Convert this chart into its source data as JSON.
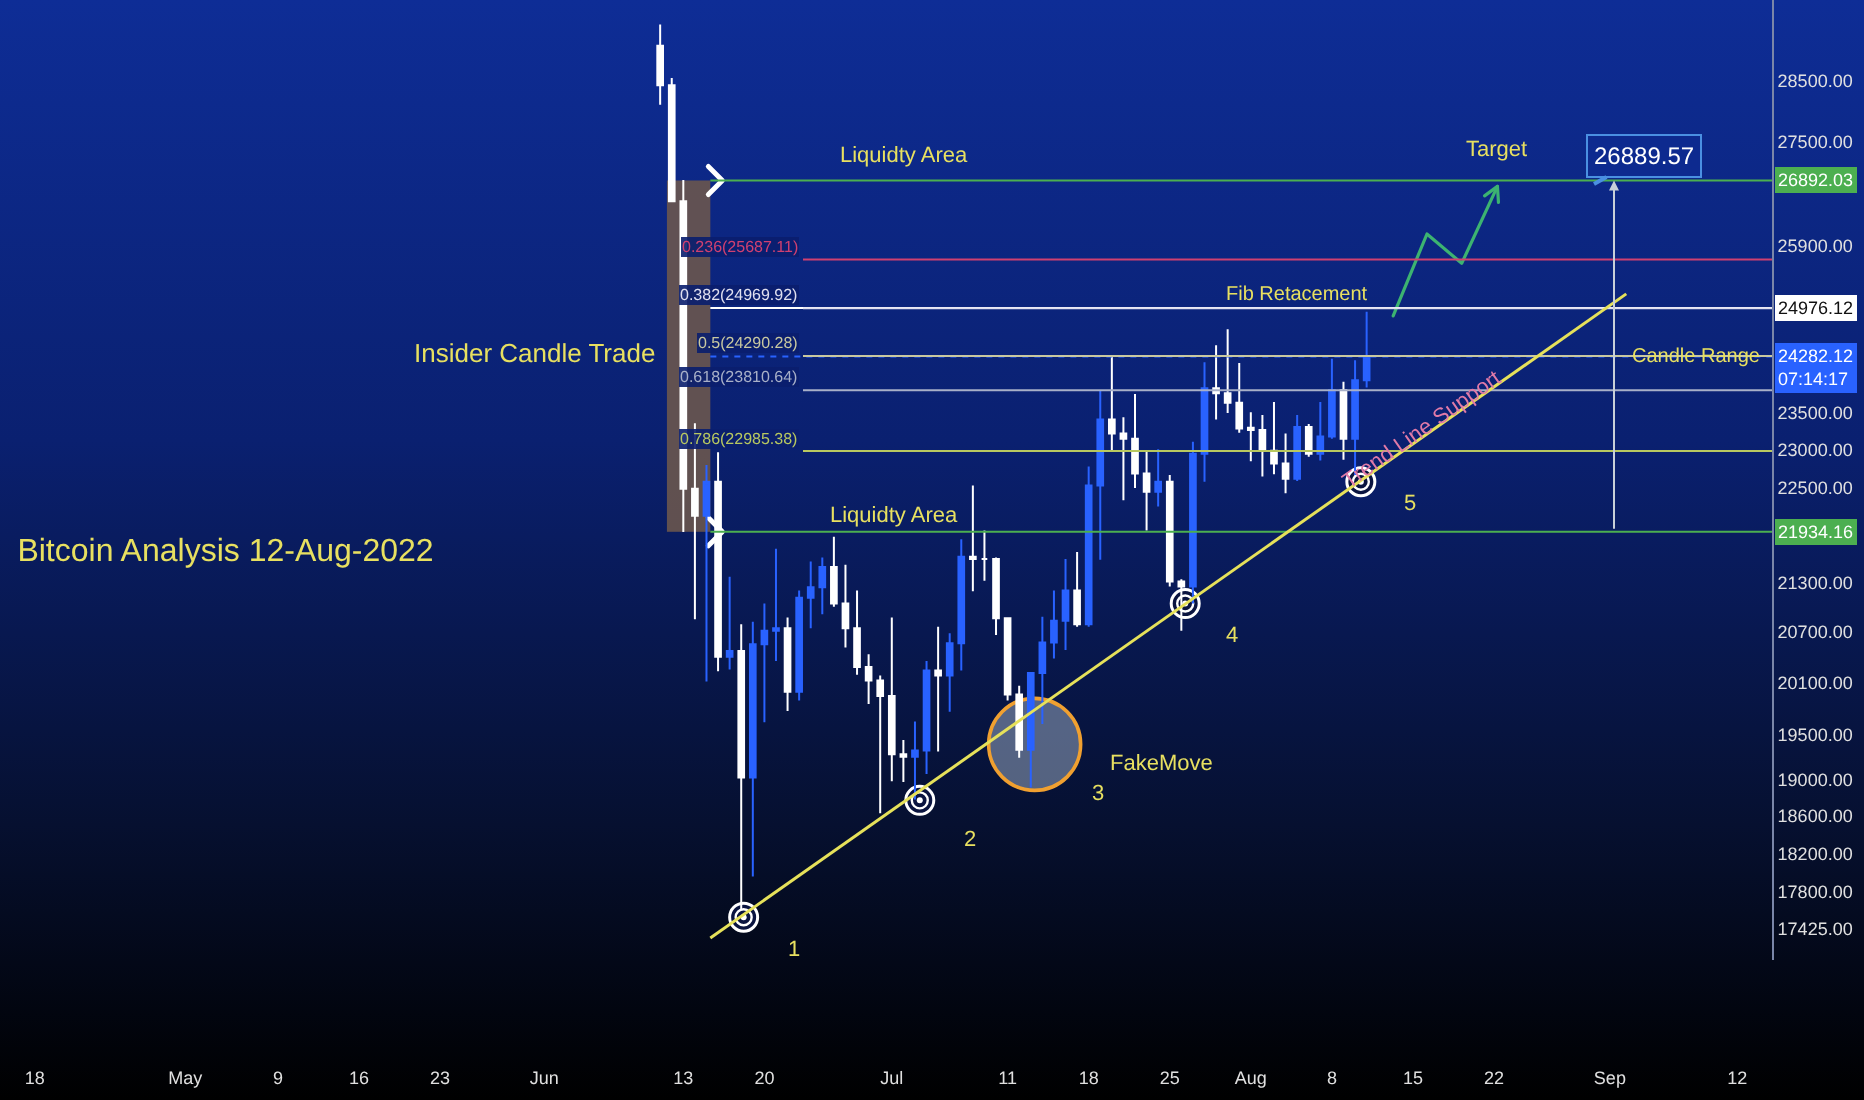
{
  "chart_data": {
    "type": "candlestick",
    "title": "Bitcoin Analysis 12-Aug-2022",
    "log": true,
    "legend": false,
    "xlim": [
      "2022-04-15",
      "2022-09-15"
    ],
    "xticks": [
      {
        "value": "2022-04-18",
        "label": "18"
      },
      {
        "value": "2022-05-01",
        "label": "May"
      },
      {
        "value": "2022-05-09",
        "label": "9"
      },
      {
        "value": "2022-05-16",
        "label": "16"
      },
      {
        "value": "2022-05-23",
        "label": "23"
      },
      {
        "value": "2022-06-01",
        "label": "Jun"
      },
      {
        "value": "2022-06-13",
        "label": "13"
      },
      {
        "value": "2022-06-20",
        "label": "20"
      },
      {
        "value": "2022-07-01",
        "label": "Jul"
      },
      {
        "value": "2022-07-11",
        "label": "11"
      },
      {
        "value": "2022-07-18",
        "label": "18"
      },
      {
        "value": "2022-07-25",
        "label": "25"
      },
      {
        "value": "2022-08-01",
        "label": "Aug"
      },
      {
        "value": "2022-08-08",
        "label": "8"
      },
      {
        "value": "2022-08-15",
        "label": "15"
      },
      {
        "value": "2022-08-22",
        "label": "22"
      },
      {
        "value": "2022-09-01",
        "label": "Sep"
      },
      {
        "value": "2022-09-12",
        "label": "12"
      }
    ],
    "ylim": [
      17110,
      29860
    ],
    "yticks": [
      {
        "value": 28500,
        "label": "28500.00"
      },
      {
        "value": 27500,
        "label": "27500.00"
      },
      {
        "value": 25900,
        "label": "25900.00"
      },
      {
        "value": 23500,
        "label": "23500.00"
      },
      {
        "value": 23000,
        "label": "23000.00"
      },
      {
        "value": 22500,
        "label": "22500.00"
      },
      {
        "value": 21300,
        "label": "21300.00"
      },
      {
        "value": 20700,
        "label": "20700.00"
      },
      {
        "value": 20100,
        "label": "20100.00"
      },
      {
        "value": 19500,
        "label": "19500.00"
      },
      {
        "value": 19000,
        "label": "19000.00"
      },
      {
        "value": 18600,
        "label": "18600.00"
      },
      {
        "value": 18200,
        "label": "18200.00"
      },
      {
        "value": 17800,
        "label": "17800.00"
      },
      {
        "value": 17425,
        "label": "17425.00"
      }
    ],
    "x": [
      "2022-06-11",
      "2022-06-12",
      "2022-06-13",
      "2022-06-14",
      "2022-06-15",
      "2022-06-16",
      "2022-06-17",
      "2022-06-18",
      "2022-06-19",
      "2022-06-20",
      "2022-06-21",
      "2022-06-22",
      "2022-06-23",
      "2022-06-24",
      "2022-06-25",
      "2022-06-26",
      "2022-06-27",
      "2022-06-28",
      "2022-06-29",
      "2022-06-30",
      "2022-07-01",
      "2022-07-02",
      "2022-07-03",
      "2022-07-04",
      "2022-07-05",
      "2022-07-06",
      "2022-07-07",
      "2022-07-08",
      "2022-07-09",
      "2022-07-10",
      "2022-07-11",
      "2022-07-12",
      "2022-07-13",
      "2022-07-14",
      "2022-07-15",
      "2022-07-16",
      "2022-07-17",
      "2022-07-18",
      "2022-07-19",
      "2022-07-20",
      "2022-07-21",
      "2022-07-22",
      "2022-07-23",
      "2022-07-24",
      "2022-07-25",
      "2022-07-26",
      "2022-07-27",
      "2022-07-28",
      "2022-07-29",
      "2022-07-30",
      "2022-07-31",
      "2022-08-01",
      "2022-08-02",
      "2022-08-03",
      "2022-08-04",
      "2022-08-05",
      "2022-08-06",
      "2022-08-07",
      "2022-08-08",
      "2022-08-09",
      "2022-08-10",
      "2022-08-11"
    ],
    "ohlc": [
      [
        29080,
        29440,
        28100,
        28420
      ],
      [
        28420,
        28540,
        26560,
        26570
      ],
      [
        26570,
        26900,
        21930,
        22490
      ],
      [
        22490,
        23360,
        20850,
        22140
      ],
      [
        22140,
        22800,
        20110,
        22580
      ],
      [
        22580,
        22970,
        20230,
        20400
      ],
      [
        20400,
        21370,
        20250,
        20470
      ],
      [
        20470,
        20790,
        17620,
        19020
      ],
      [
        19020,
        20820,
        17960,
        20550
      ],
      [
        20550,
        21040,
        19640,
        20710
      ],
      [
        20710,
        21720,
        20350,
        20740
      ],
      [
        20740,
        20870,
        19770,
        19990
      ],
      [
        19990,
        21200,
        19890,
        21110
      ],
      [
        21110,
        21560,
        20740,
        21240
      ],
      [
        21240,
        21610,
        20910,
        21490
      ],
      [
        21490,
        21870,
        21000,
        21040
      ],
      [
        21040,
        21520,
        20510,
        20740
      ],
      [
        20740,
        21200,
        20190,
        20280
      ],
      [
        20280,
        20430,
        19850,
        20120
      ],
      [
        20120,
        20180,
        18630,
        19940
      ],
      [
        19940,
        20870,
        18980,
        19280
      ],
      [
        19280,
        19440,
        18970,
        19250
      ],
      [
        19250,
        19650,
        18780,
        19320
      ],
      [
        19320,
        20350,
        19060,
        20240
      ],
      [
        20240,
        20760,
        19310,
        20180
      ],
      [
        20180,
        20680,
        19760,
        20560
      ],
      [
        20560,
        21840,
        20240,
        21620
      ],
      [
        21620,
        22530,
        21190,
        21590
      ],
      [
        21590,
        21950,
        21320,
        21590
      ],
      [
        21590,
        21610,
        20660,
        20860
      ],
      [
        20860,
        20870,
        19890,
        19960
      ],
      [
        19960,
        20060,
        19240,
        19330
      ],
      [
        19330,
        20220,
        18910,
        20210
      ],
      [
        20210,
        20880,
        19620,
        20570
      ],
      [
        20570,
        21200,
        20380,
        20830
      ],
      [
        20830,
        21590,
        20480,
        21200
      ],
      [
        21200,
        21680,
        20760,
        20790
      ],
      [
        20790,
        22780,
        20760,
        22530
      ],
      [
        22530,
        23800,
        21580,
        23410
      ],
      [
        23410,
        24280,
        23000,
        23220
      ],
      [
        23220,
        23440,
        22340,
        23150
      ],
      [
        23150,
        23760,
        22500,
        22690
      ],
      [
        22690,
        23000,
        21950,
        22450
      ],
      [
        22450,
        23010,
        22260,
        22580
      ],
      [
        22580,
        22670,
        21250,
        21310
      ],
      [
        21310,
        21340,
        20710,
        21250
      ],
      [
        21250,
        23110,
        21040,
        22950
      ],
      [
        22950,
        24200,
        22580,
        23840
      ],
      [
        23840,
        24440,
        23410,
        23770
      ],
      [
        23770,
        24670,
        23500,
        23640
      ],
      [
        23640,
        24190,
        23230,
        23290
      ],
      [
        23300,
        23510,
        22850,
        23270
      ],
      [
        23270,
        23470,
        22650,
        22990
      ],
      [
        22990,
        23650,
        22680,
        22820
      ],
      [
        22820,
        23220,
        22430,
        22620
      ],
      [
        22620,
        23470,
        22590,
        23310
      ],
      [
        23310,
        23350,
        22910,
        22950
      ],
      [
        22950,
        23650,
        22860,
        23180
      ],
      [
        23180,
        24250,
        23150,
        23810
      ],
      [
        23810,
        23930,
        22870,
        23150
      ],
      [
        23150,
        24230,
        22670,
        23950
      ],
      [
        23950,
        24920,
        23850,
        24282.12
      ]
    ],
    "series": [
      {
        "type": "line",
        "name": "Trend Line Support",
        "color": "#e6e15a",
        "x": [
          "2022-06-15T08:00",
          "2022-09-02T10:00"
        ],
        "values": [
          17330,
          25180
        ]
      }
    ],
    "ref_lines": [
      {
        "axis": "y",
        "value": 26892.03,
        "label": "26892.03",
        "color": "#4caf50"
      },
      {
        "axis": "y",
        "value": 21934.16,
        "label": "21934.16",
        "color": "#4caf50"
      },
      {
        "axis": "y",
        "value": 24976.12,
        "label": "24976.12",
        "color": "#ffffff"
      },
      {
        "axis": "y",
        "value": 24282.12,
        "label": "24282.12\n07:14:17",
        "color": "#2962ff",
        "line_style": "dotted"
      },
      {
        "axis": "y",
        "value": 25687.11,
        "label": "0.236(25687.11)",
        "color": "#d04070"
      },
      {
        "axis": "y",
        "value": 24969.92,
        "label": "0.382(24969.92)",
        "color": "#e0e0f0"
      },
      {
        "axis": "y",
        "value": 24290.28,
        "label": "0.5(24290.28)",
        "color": "#c8c8a0"
      },
      {
        "axis": "y",
        "value": 23810.64,
        "label": "0.618(23810.64)",
        "color": "#a8b0c8"
      },
      {
        "axis": "y",
        "value": 22985.38,
        "label": "0.786(22985.38)",
        "color": "#b8c860"
      }
    ],
    "annotations": [
      "Liquidty Area",
      "Liquidty Area",
      "Fib Retacement",
      {
        "text": "Target",
        "x": "2022-08-22T07:00",
        "y": 26800
      },
      "Candle Range",
      "FakeMove",
      "1",
      "2",
      "3",
      "4",
      "5",
      "26889.57",
      "Insider Candle Trade"
    ]
  }
}
